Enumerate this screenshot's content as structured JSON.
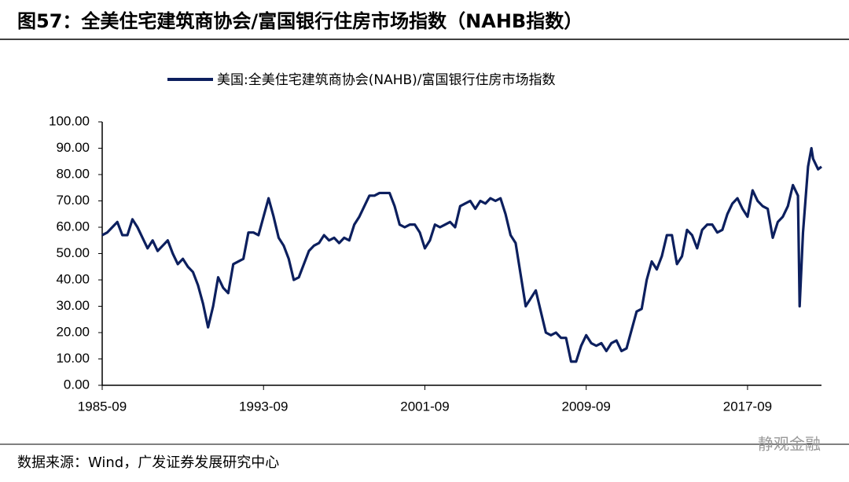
{
  "chart_data": {
    "type": "line",
    "title": "图57：全美住宅建筑商协会/富国银行住房市场指数（NAHB指数）",
    "source": "数据来源：Wind，广发证券发展研究中心",
    "watermark": "静观金融",
    "x": [
      "1985-09",
      "1985-12",
      "1986-03",
      "1986-06",
      "1986-09",
      "1986-12",
      "1987-03",
      "1987-06",
      "1987-09",
      "1987-12",
      "1988-03",
      "1988-06",
      "1988-09",
      "1988-12",
      "1989-03",
      "1989-06",
      "1989-09",
      "1989-12",
      "1990-03",
      "1990-06",
      "1990-09",
      "1990-12",
      "1991-03",
      "1991-06",
      "1991-09",
      "1991-12",
      "1992-03",
      "1992-06",
      "1992-09",
      "1992-12",
      "1993-03",
      "1993-06",
      "1993-09",
      "1993-12",
      "1994-03",
      "1994-06",
      "1994-09",
      "1994-12",
      "1995-03",
      "1995-06",
      "1995-09",
      "1995-12",
      "1996-03",
      "1996-06",
      "1996-09",
      "1996-12",
      "1997-03",
      "1997-06",
      "1997-09",
      "1997-12",
      "1998-03",
      "1998-06",
      "1998-09",
      "1998-12",
      "1999-03",
      "1999-06",
      "1999-09",
      "1999-12",
      "2000-03",
      "2000-06",
      "2000-09",
      "2000-12",
      "2001-03",
      "2001-06",
      "2001-09",
      "2001-12",
      "2002-03",
      "2002-06",
      "2002-09",
      "2002-12",
      "2003-03",
      "2003-06",
      "2003-09",
      "2003-12",
      "2004-03",
      "2004-06",
      "2004-09",
      "2004-12",
      "2005-03",
      "2005-06",
      "2005-09",
      "2005-12",
      "2006-03",
      "2006-06",
      "2006-09",
      "2006-12",
      "2007-03",
      "2007-06",
      "2007-09",
      "2007-12",
      "2008-03",
      "2008-06",
      "2008-09",
      "2008-12",
      "2009-03",
      "2009-06",
      "2009-09",
      "2009-12",
      "2010-03",
      "2010-06",
      "2010-09",
      "2010-12",
      "2011-03",
      "2011-06",
      "2011-09",
      "2011-12",
      "2012-03",
      "2012-06",
      "2012-09",
      "2012-12",
      "2013-03",
      "2013-06",
      "2013-09",
      "2013-12",
      "2014-03",
      "2014-06",
      "2014-09",
      "2014-12",
      "2015-03",
      "2015-06",
      "2015-09",
      "2015-12",
      "2016-03",
      "2016-06",
      "2016-09",
      "2016-12",
      "2017-03",
      "2017-06",
      "2017-09",
      "2017-12",
      "2018-03",
      "2018-06",
      "2018-09",
      "2018-12",
      "2019-03",
      "2019-06",
      "2019-09",
      "2019-12",
      "2020-03",
      "2020-04",
      "2020-06",
      "2020-09",
      "2020-11",
      "2020-12",
      "2021-03",
      "2021-05"
    ],
    "series": [
      {
        "name": "美国:全美住宅建筑商协会(NAHB)/富国银行住房市场指数",
        "color": "#0c1f5e",
        "values": [
          57,
          58,
          60,
          62,
          57,
          57,
          63,
          60,
          56,
          52,
          55,
          51,
          53,
          55,
          50,
          46,
          48,
          45,
          43,
          38,
          31,
          22,
          30,
          41,
          37,
          35,
          46,
          47,
          48,
          58,
          58,
          57,
          64,
          71,
          64,
          56,
          53,
          48,
          40,
          41,
          46,
          51,
          53,
          54,
          57,
          55,
          56,
          54,
          56,
          55,
          61,
          64,
          68,
          72,
          72,
          73,
          73,
          73,
          68,
          61,
          60,
          61,
          61,
          58,
          52,
          55,
          61,
          60,
          61,
          62,
          60,
          68,
          69,
          70,
          67,
          70,
          69,
          71,
          70,
          71,
          65,
          57,
          54,
          42,
          30,
          33,
          36,
          28,
          20,
          19,
          20,
          18,
          18,
          9,
          9,
          15,
          19,
          16,
          15,
          16,
          13,
          16,
          17,
          13,
          14,
          21,
          28,
          29,
          40,
          47,
          44,
          49,
          57,
          57,
          46,
          49,
          59,
          57,
          52,
          59,
          61,
          61,
          58,
          59,
          65,
          69,
          71,
          67,
          64,
          74,
          70,
          68,
          67,
          56,
          62,
          64,
          68,
          76,
          72,
          30,
          58,
          83,
          90,
          86,
          82,
          83
        ]
      }
    ],
    "xlim": [
      "1985-09",
      "2021-05"
    ],
    "xticks": [
      "1985-09",
      "1993-09",
      "2001-09",
      "2009-09",
      "2017-09"
    ],
    "ylim": [
      0,
      100
    ],
    "yticks": [
      {
        "value": 0,
        "label": "0.00"
      },
      {
        "value": 10,
        "label": "10.00"
      },
      {
        "value": 20,
        "label": "20.00"
      },
      {
        "value": 30,
        "label": "30.00"
      },
      {
        "value": 40,
        "label": "40.00"
      },
      {
        "value": 50,
        "label": "50.00"
      },
      {
        "value": 60,
        "label": "60.00"
      },
      {
        "value": 70,
        "label": "70.00"
      },
      {
        "value": 80,
        "label": "80.00"
      },
      {
        "value": 90,
        "label": "90.00"
      },
      {
        "value": 100,
        "label": "100.00"
      }
    ],
    "grid": false,
    "legend": "top"
  }
}
